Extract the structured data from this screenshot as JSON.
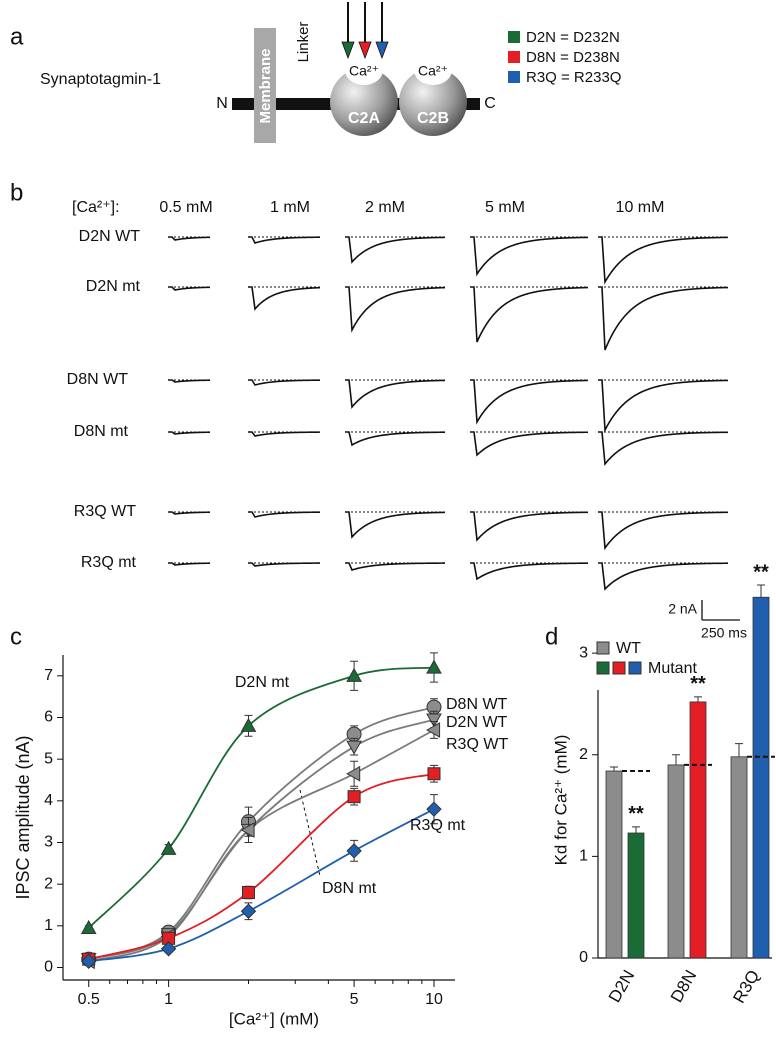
{
  "panel_a": {
    "label": "a",
    "protein": "Synaptotagmin-1",
    "membrane": "Membrane",
    "linker": "Linker",
    "n_term": "N",
    "c_term": "C",
    "domains": [
      "C2A",
      "C2B"
    ],
    "ion": "Ca²⁺",
    "legend": [
      {
        "text": "D2N = D232N",
        "color": "#1a6b35"
      },
      {
        "text": "D8N = D238N",
        "color": "#e31e24"
      },
      {
        "text": "R3Q = R233Q",
        "color": "#1f5fae"
      }
    ]
  },
  "panel_b": {
    "label": "b",
    "header": "[Ca²⁺]:",
    "concentrations": [
      "0.5 mM",
      "1 mM",
      "2 mM",
      "5 mM",
      "10 mM"
    ],
    "rows": [
      {
        "name": "D2N WT",
        "amplitudes": [
          0.3,
          0.6,
          2.5,
          3.7,
          4.5
        ]
      },
      {
        "name": "D2N mt",
        "amplitudes": [
          0.3,
          2.2,
          4.3,
          5.5,
          6.3
        ]
      },
      {
        "name": "D8N WT",
        "amplitudes": [
          0.2,
          0.5,
          2.7,
          4.2,
          5.0
        ]
      },
      {
        "name": "D8N mt",
        "amplitudes": [
          0.2,
          0.4,
          1.3,
          2.3,
          3.2
        ]
      },
      {
        "name": "R3Q WT",
        "amplitudes": [
          0.2,
          0.5,
          2.5,
          2.8,
          3.6
        ]
      },
      {
        "name": "R3Q mt",
        "amplitudes": [
          0.2,
          0.3,
          0.7,
          1.6,
          2.6
        ]
      }
    ],
    "scale_amplitude": "2 nA",
    "scale_time": "250 ms"
  },
  "chart_data": [
    {
      "panel_label": "c",
      "type": "line",
      "xlabel": "[Ca²⁺] (mM)",
      "ylabel": "IPSC amplitude (nA)",
      "log_x": true,
      "x": [
        0.5,
        1,
        2,
        5,
        10
      ],
      "xlim": [
        0.4,
        12
      ],
      "xticks": [
        0.5,
        1,
        5,
        10
      ],
      "xminorticks": [
        0.6,
        0.7,
        0.8,
        0.9,
        2,
        3,
        4,
        6,
        7,
        8,
        9
      ],
      "ylim": [
        -0.3,
        7.5
      ],
      "yticks": [
        0,
        1,
        2,
        3,
        4,
        5,
        6,
        7
      ],
      "series": [
        {
          "name": "D2N mt",
          "color": "#1a6b35",
          "marker": "triangle-up",
          "values": [
            0.95,
            2.85,
            5.8,
            7.0,
            7.2
          ],
          "errors": [
            0.05,
            0.1,
            0.25,
            0.35,
            0.35
          ]
        },
        {
          "name": "D8N WT",
          "color": "#8c8c8c",
          "marker": "circle",
          "values": [
            0.2,
            0.85,
            3.5,
            5.6,
            6.25
          ],
          "errors": [
            0.05,
            0.1,
            0.35,
            0.2,
            0.2
          ]
        },
        {
          "name": "D2N WT",
          "color": "#8c8c8c",
          "marker": "triangle-down",
          "values": [
            0.2,
            0.8,
            3.3,
            5.3,
            5.95
          ],
          "errors": [
            0.05,
            0.1,
            0.3,
            0.2,
            0.2
          ]
        },
        {
          "name": "R3Q WT",
          "color": "#8c8c8c",
          "marker": "triangle-left",
          "values": [
            0.15,
            0.75,
            3.3,
            4.65,
            5.7
          ],
          "errors": [
            0.05,
            0.1,
            0.3,
            0.3,
            0.2
          ]
        },
        {
          "name": "D8N mt",
          "color": "#e31e24",
          "marker": "square",
          "values": [
            0.2,
            0.7,
            1.8,
            4.1,
            4.65
          ],
          "errors": [
            0.05,
            0.1,
            0.15,
            0.2,
            0.2
          ]
        },
        {
          "name": "R3Q mt",
          "color": "#1f5fae",
          "marker": "diamond",
          "values": [
            0.15,
            0.45,
            1.35,
            2.8,
            3.8
          ],
          "errors": [
            0.05,
            0.08,
            0.2,
            0.25,
            0.35
          ]
        }
      ]
    },
    {
      "panel_label": "d",
      "type": "bar",
      "ylabel": "Kd for Ca²⁺ (mM)",
      "categories": [
        "D2N",
        "D8N",
        "R3Q"
      ],
      "ylim": [
        0,
        3.7
      ],
      "yticks": [
        0,
        1,
        2,
        3
      ],
      "series": [
        {
          "name": "WT",
          "color": "#8c8c8c",
          "values": [
            1.84,
            1.9,
            1.98
          ],
          "errors": [
            0.04,
            0.1,
            0.13
          ]
        },
        {
          "name": "Mutant",
          "colors": [
            "#1a6b35",
            "#e31e24",
            "#1f5fae"
          ],
          "values": [
            1.23,
            2.52,
            3.55
          ],
          "errors": [
            0.06,
            0.05,
            0.12
          ],
          "annotations": [
            "**",
            "**",
            "**"
          ]
        }
      ]
    }
  ]
}
